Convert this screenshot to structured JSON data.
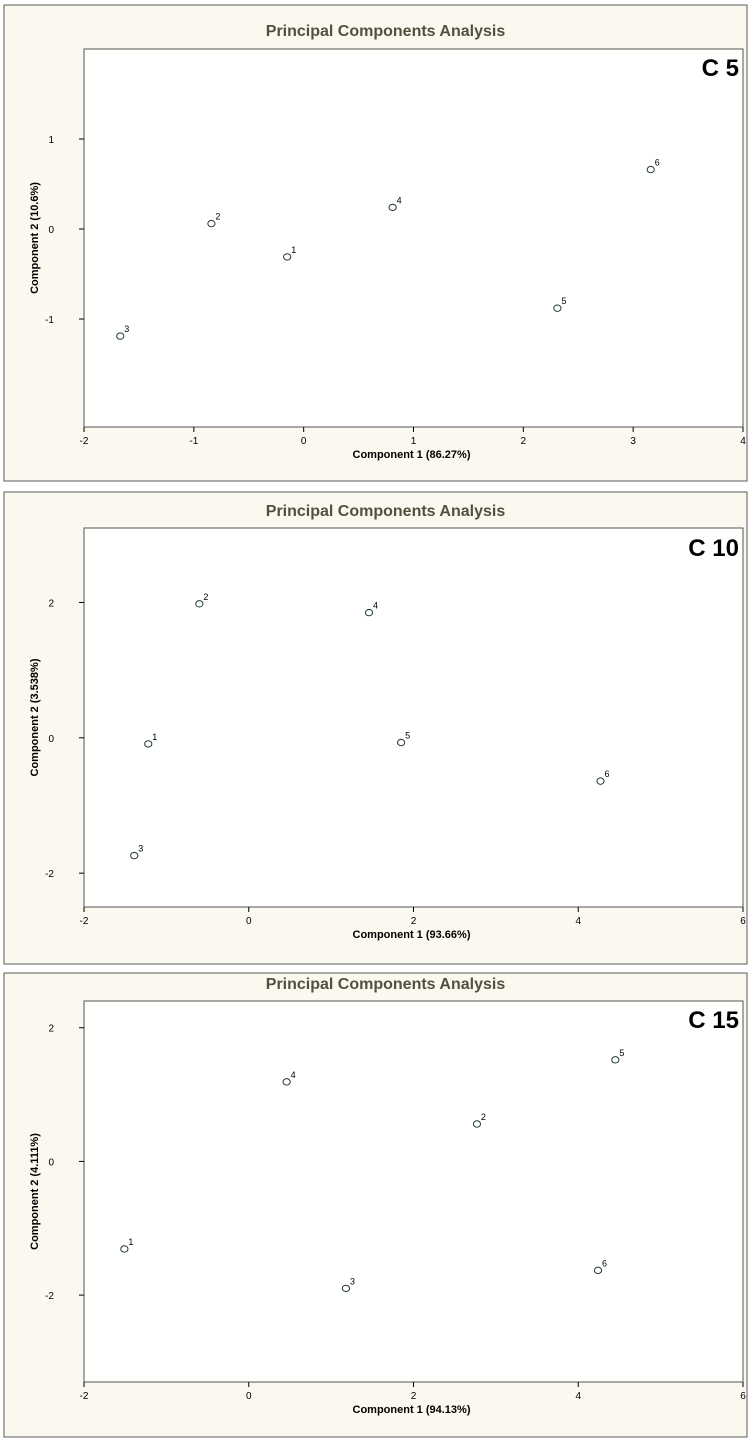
{
  "chart_data": [
    {
      "type": "scatter",
      "title": "Principal Components Analysis",
      "tag": "C 5",
      "xlabel": "Component 1 (86.27%)",
      "ylabel": "Component 2 (10.6%)",
      "xlim": [
        -2,
        4
      ],
      "ylim": [
        -2.2,
        2
      ],
      "xticks": [
        -2,
        -1,
        0,
        1,
        2,
        3,
        4
      ],
      "yticks": [
        -1,
        0,
        1
      ],
      "grid": false,
      "points": [
        {
          "label": "1",
          "x": -0.15,
          "y": -0.31
        },
        {
          "label": "2",
          "x": -0.84,
          "y": 0.06
        },
        {
          "label": "3",
          "x": -1.67,
          "y": -1.19
        },
        {
          "label": "4",
          "x": 0.81,
          "y": 0.24
        },
        {
          "label": "5",
          "x": 2.31,
          "y": -0.88
        },
        {
          "label": "6",
          "x": 3.16,
          "y": 0.66
        }
      ]
    },
    {
      "type": "scatter",
      "title": "Principal Components Analysis",
      "tag": "C 10",
      "xlabel": "Component 1 (93.66%)",
      "ylabel": "Component 2 (3.538%)",
      "xlim": [
        -2,
        6
      ],
      "ylim": [
        -2.5,
        3.1
      ],
      "xticks": [
        -2,
        0,
        2,
        4,
        6
      ],
      "yticks": [
        -2,
        0,
        2
      ],
      "grid": false,
      "points": [
        {
          "label": "1",
          "x": -1.22,
          "y": -0.09
        },
        {
          "label": "2",
          "x": -0.6,
          "y": 1.98
        },
        {
          "label": "3",
          "x": -1.39,
          "y": -1.74
        },
        {
          "label": "4",
          "x": 1.46,
          "y": 1.85
        },
        {
          "label": "5",
          "x": 1.85,
          "y": -0.07
        },
        {
          "label": "6",
          "x": 4.27,
          "y": -0.64
        }
      ]
    },
    {
      "type": "scatter",
      "title": "Principal Components Analysis",
      "tag": "C 15",
      "xlabel": "Component 1 (94.13%)",
      "ylabel": "Component 2 (4.111%)",
      "xlim": [
        -2,
        6
      ],
      "ylim": [
        -3.3,
        2.4
      ],
      "xticks": [
        -2,
        0,
        2,
        4,
        6
      ],
      "yticks": [
        -2,
        0,
        2
      ],
      "grid": false,
      "points": [
        {
          "label": "1",
          "x": -1.51,
          "y": -1.31
        },
        {
          "label": "2",
          "x": 2.77,
          "y": 0.56
        },
        {
          "label": "3",
          "x": 1.18,
          "y": -1.9
        },
        {
          "label": "4",
          "x": 0.46,
          "y": 1.19
        },
        {
          "label": "5",
          "x": 4.45,
          "y": 1.52
        },
        {
          "label": "6",
          "x": 4.24,
          "y": -1.63
        }
      ]
    }
  ]
}
